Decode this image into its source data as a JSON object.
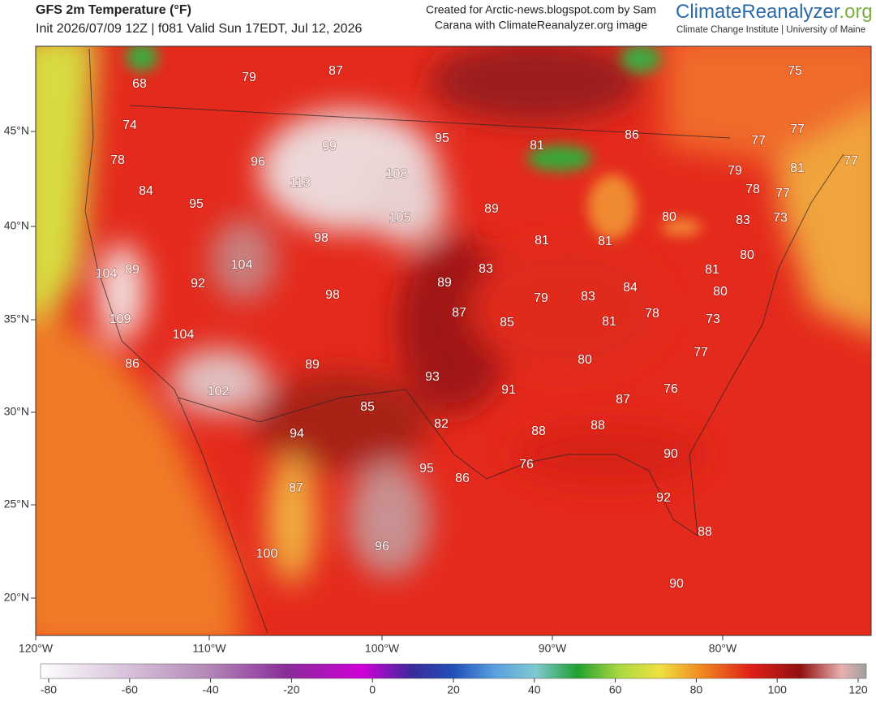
{
  "header": {
    "title": "GFS 2m Temperature (°F)",
    "subtitle": "Init 2026/07/09 12Z | f081 Valid Sun 17EDT, Jul 12, 2026",
    "credit": [
      "Created for Arctic-news.blogspot.com by Sam",
      "Carana with ClimateReanalyzer.org image"
    ],
    "logo": {
      "name": "ClimateReanalyzer",
      "suffix": ".org",
      "tagline": "Climate Change Institute | University of Maine"
    }
  },
  "map": {
    "latitude_labels": [
      "45°N",
      "40°N",
      "35°N",
      "30°N",
      "25°N",
      "20°N"
    ],
    "longitude_labels": [
      "120°W",
      "110°W",
      "100°W",
      "90°W",
      "80°W"
    ],
    "temperature_labels": [
      68,
      79,
      87,
      75,
      74,
      95,
      86,
      77,
      77,
      99,
      81,
      77,
      78,
      96,
      108,
      79,
      81,
      113,
      78,
      77,
      84,
      95,
      89,
      105,
      80,
      83,
      73,
      98,
      81,
      81,
      104,
      80,
      104,
      89,
      83,
      81,
      92,
      89,
      84,
      80,
      98,
      79,
      83,
      87,
      78,
      109,
      85,
      81,
      73,
      104,
      77,
      86,
      89,
      80,
      93,
      91,
      76,
      102,
      87,
      85,
      82,
      88,
      88,
      94,
      90,
      76,
      95,
      86,
      87,
      92,
      88,
      96,
      100,
      90
    ]
  },
  "colorbar": {
    "range": [
      -82,
      122
    ],
    "ticks": [
      -80,
      -60,
      -40,
      -20,
      0,
      20,
      40,
      60,
      80,
      100,
      120
    ]
  }
}
